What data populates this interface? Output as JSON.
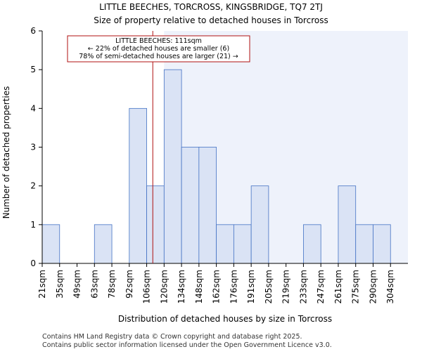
{
  "chart_data": {
    "type": "bar",
    "title": "LITTLE BEECHES, TORCROSS, KINGSBRIDGE, TQ7 2TJ",
    "subtitle": "Size of property relative to detached houses in Torcross",
    "xlabel": "Distribution of detached houses by size in Torcross",
    "ylabel": "Number of detached properties",
    "categories": [
      "21sqm",
      "35sqm",
      "49sqm",
      "63sqm",
      "78sqm",
      "92sqm",
      "106sqm",
      "120sqm",
      "134sqm",
      "148sqm",
      "162sqm",
      "176sqm",
      "191sqm",
      "205sqm",
      "219sqm",
      "233sqm",
      "247sqm",
      "261sqm",
      "275sqm",
      "290sqm",
      "304sqm"
    ],
    "values": [
      1,
      0,
      0,
      1,
      0,
      4,
      2,
      5,
      3,
      3,
      1,
      1,
      2,
      0,
      0,
      1,
      0,
      2,
      1,
      1,
      null
    ],
    "ylim": [
      0,
      6
    ],
    "yticks": [
      0,
      1,
      2,
      3,
      4,
      5,
      6
    ],
    "grid": false,
    "highlight_from_index": 7,
    "marker": {
      "value_sqm": 111,
      "bin_position": 6.35,
      "lines": [
        "LITTLE BEECHES: 111sqm",
        "← 22% of detached houses are smaller (6)",
        "78% of semi-detached houses are larger (21) →"
      ]
    }
  },
  "colors": {
    "bar_fill": "#dae3f5",
    "bar_stroke": "#4472c4",
    "highlight_bg": "#eef2fb",
    "marker": "#b01010",
    "axis": "#000000"
  },
  "footer": {
    "line1": "Contains HM Land Registry data © Crown copyright and database right 2025.",
    "line2": "Contains public sector information licensed under the Open Government Licence v3.0."
  }
}
